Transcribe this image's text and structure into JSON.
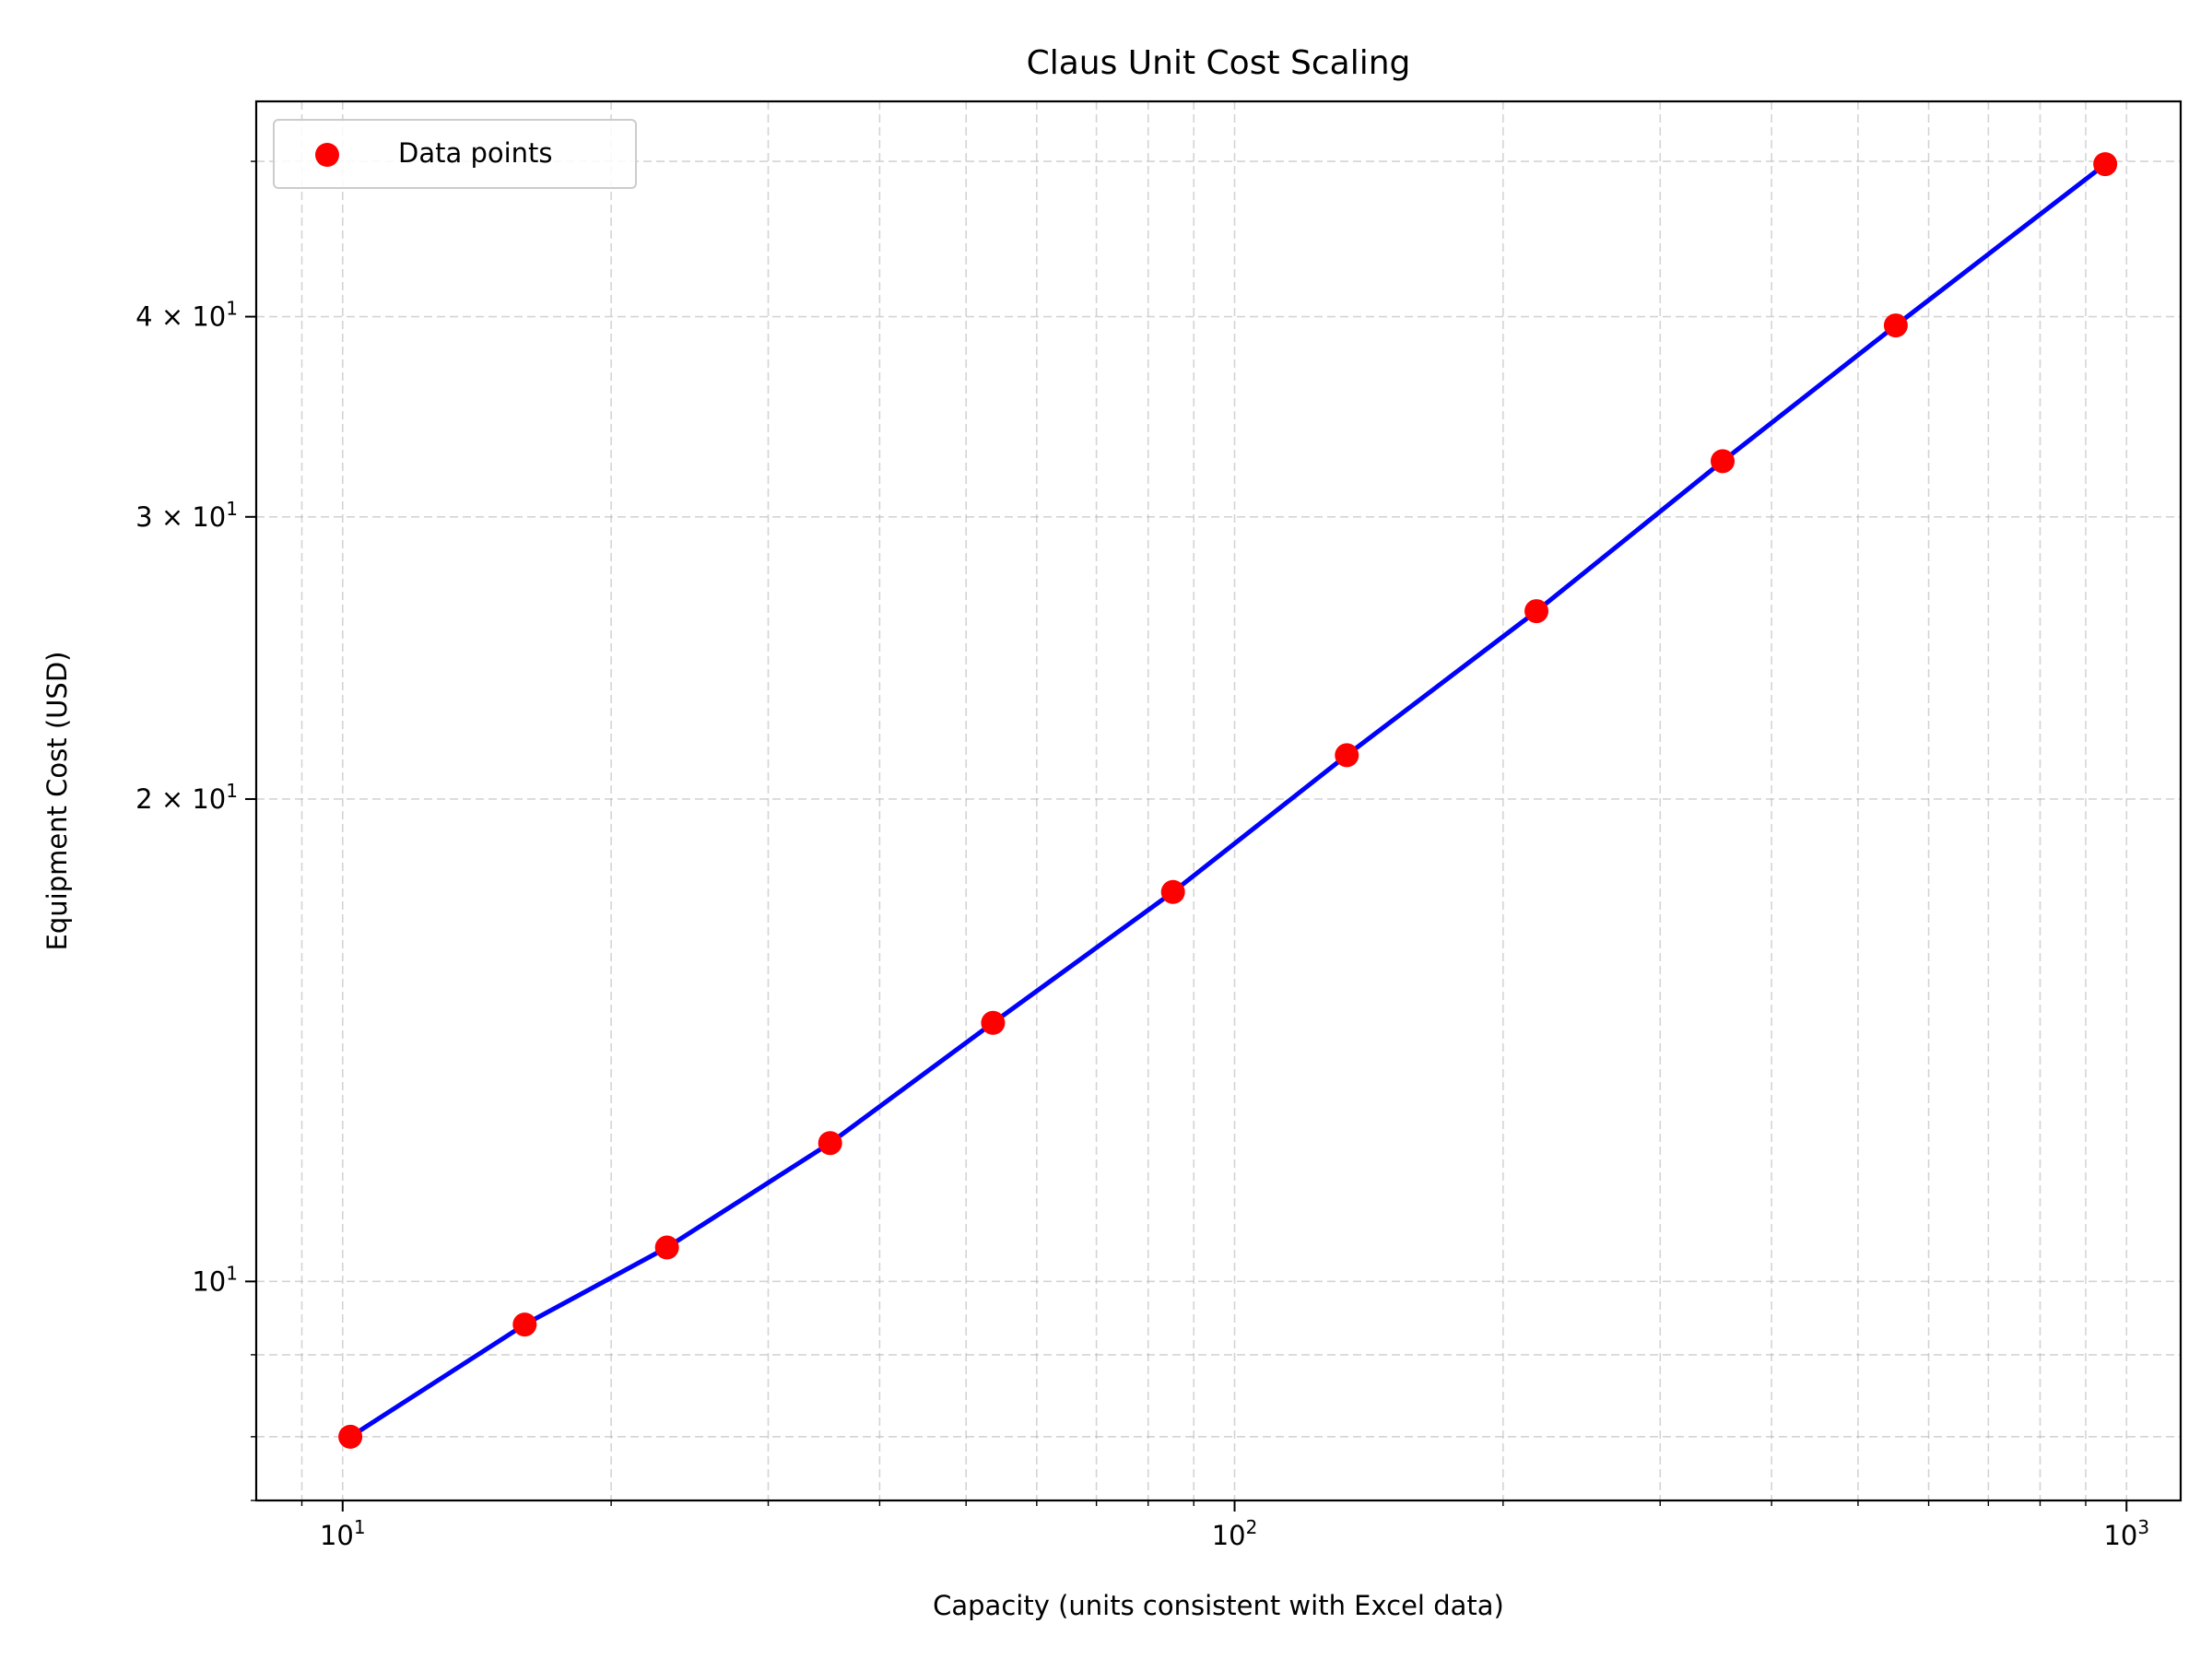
{
  "chart_data": {
    "type": "scatter",
    "title": "Claus Unit Cost Scaling",
    "xlabel": "Capacity (units consistent with Excel data)",
    "ylabel": "Equipment Cost (USD)",
    "x_scale": "log",
    "y_scale": "log",
    "xlim": [
      8,
      1150
    ],
    "ylim": [
      7.3,
      54.5
    ],
    "grid": true,
    "legend_position": "top-left",
    "x_tick_labels": [
      {
        "value": 10,
        "base": "10",
        "exp": "1"
      },
      {
        "value": 100,
        "base": "10",
        "exp": "2"
      },
      {
        "value": 1000,
        "base": "10",
        "exp": "3"
      }
    ],
    "y_tick_labels": [
      {
        "value": 10,
        "base": "10",
        "exp": "1"
      },
      {
        "value": 20,
        "base": "2 × 10",
        "exp": "1"
      },
      {
        "value": 30,
        "base": "3 × 10",
        "exp": "1"
      },
      {
        "value": 40,
        "base": "4 × 10",
        "exp": "1"
      }
    ],
    "x_minor_ticks": [
      9,
      20,
      30,
      40,
      50,
      60,
      70,
      80,
      90,
      200,
      300,
      400,
      500,
      600,
      700,
      800,
      900
    ],
    "y_minor_ticks": [
      7.3,
      8,
      9,
      50
    ],
    "series": [
      {
        "name": "Data points",
        "type": "scatter",
        "color": "#ff0000",
        "x": [
          10.2,
          16.0,
          23.1,
          35.2,
          53.6,
          85.3,
          133.6,
          218.0,
          352.5,
          551.2,
          946.5
        ],
        "y": [
          8.0,
          9.4,
          10.5,
          12.2,
          14.5,
          17.5,
          21.3,
          26.2,
          32.5,
          39.5,
          49.8
        ]
      },
      {
        "type": "line",
        "color": "#0000ff",
        "x": [
          10.2,
          16.0,
          23.1,
          35.2,
          53.6,
          85.3,
          133.6,
          218.0,
          352.5,
          551.2,
          946.5
        ],
        "y": [
          8.0,
          9.4,
          10.5,
          12.2,
          14.5,
          17.5,
          21.3,
          26.2,
          32.5,
          39.5,
          49.8
        ]
      }
    ]
  }
}
